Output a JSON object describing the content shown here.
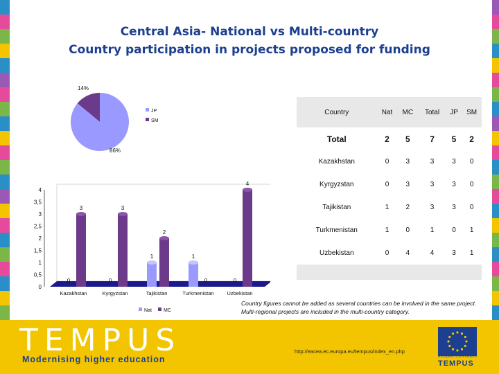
{
  "title_line1": "Central Asia- National vs Multi-country",
  "title_line2": "Country participation in projects proposed for funding",
  "chart_data": [
    {
      "type": "pie",
      "labels": [
        "JP",
        "SM"
      ],
      "values": [
        86,
        14
      ],
      "value_labels": [
        "86%",
        "14%"
      ],
      "colors": [
        "#9999ff",
        "#6b3a8a"
      ],
      "legend_position": "right"
    },
    {
      "type": "bar",
      "categories": [
        "Kazakhstan",
        "Kyrgyzstan",
        "Tajikistan",
        "Turkmenistan",
        "Uzbekistan"
      ],
      "series": [
        {
          "name": "Nat",
          "values": [
            0,
            0,
            1,
            1,
            0
          ],
          "color": "#9999ff"
        },
        {
          "name": "MC",
          "values": [
            3,
            3,
            2,
            0,
            4
          ],
          "color": "#6b3a8a"
        }
      ],
      "ylim": [
        0,
        4
      ],
      "yticks": [
        "0",
        "0,5",
        "1",
        "1,5",
        "2",
        "2,5",
        "3",
        "3,5",
        "4"
      ],
      "legend_position": "bottom"
    },
    {
      "type": "table",
      "headers": [
        "Country",
        "Nat",
        "MC",
        "Total",
        "JP",
        "SM"
      ],
      "rows": [
        [
          "Total",
          "2",
          "5",
          "7",
          "5",
          "2"
        ],
        [
          "Kazakhstan",
          "0",
          "3",
          "3",
          "3",
          "0"
        ],
        [
          "Kyrgyzstan",
          "0",
          "3",
          "3",
          "3",
          "0"
        ],
        [
          "Tajikistan",
          "1",
          "2",
          "3",
          "3",
          "0"
        ],
        [
          "Turkmenistan",
          "1",
          "0",
          "1",
          "0",
          "1"
        ],
        [
          "Uzbekistan",
          "0",
          "4",
          "4",
          "3",
          "1"
        ]
      ]
    }
  ],
  "note_line1": "Country figures cannot be added as several countries can be involved in the same project.",
  "note_line2": "Multi-regional projects are included in the multi-country category.",
  "footer": {
    "logo": "TEMPUS",
    "slogan": "Modernising higher education",
    "url": "http://eacea.ec.europa.eu/tempus/index_en.php",
    "eu_text": "European Commission",
    "eu_tempus": "TEMPUS"
  },
  "colors": {
    "title": "#1c3f8f",
    "footer": "#f2c500",
    "nat": "#9999ff",
    "mc": "#6b3a8a"
  }
}
